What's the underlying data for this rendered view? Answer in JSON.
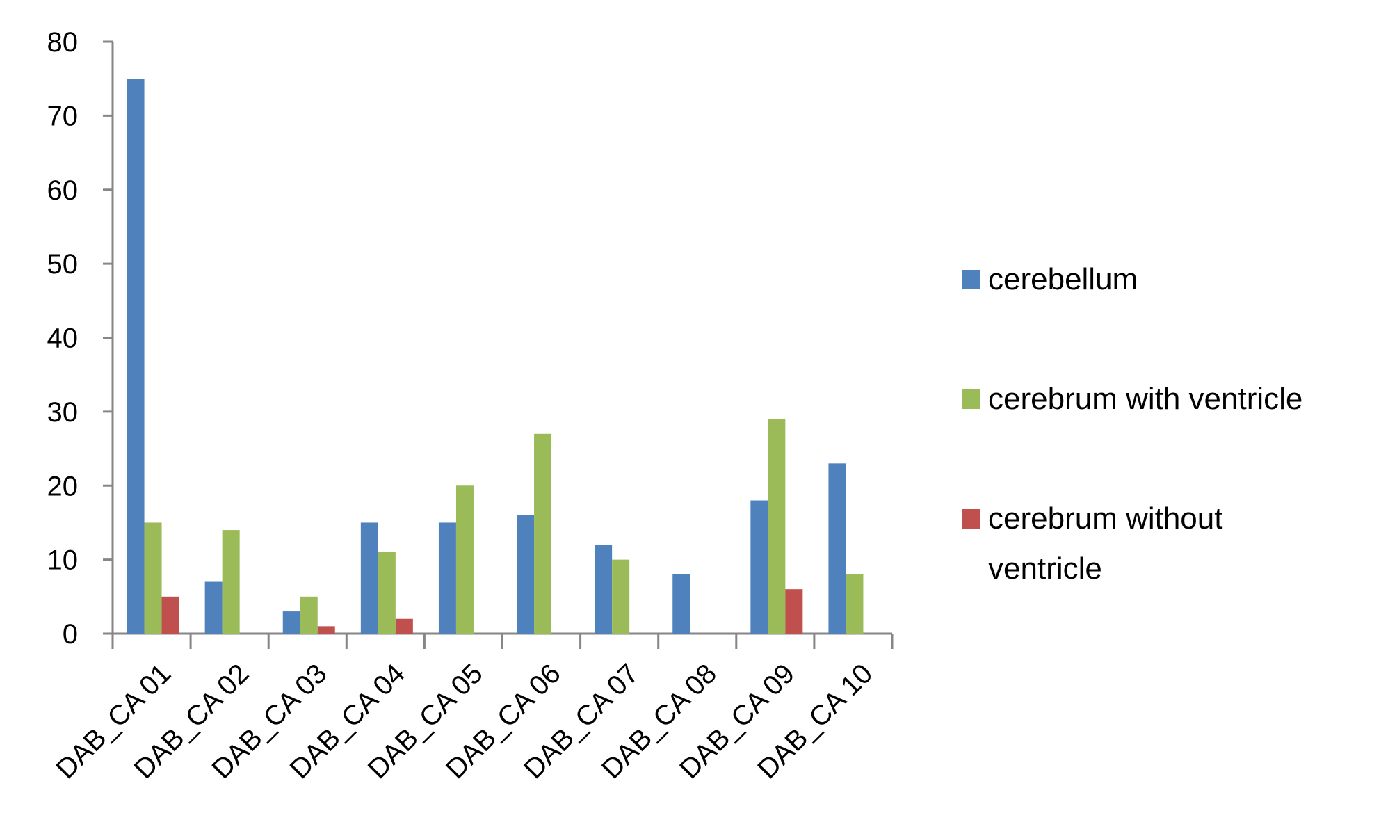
{
  "chart_data": {
    "type": "bar",
    "title": "",
    "xlabel": "",
    "ylabel": "",
    "ylim": [
      0,
      80
    ],
    "yticks": [
      0,
      10,
      20,
      30,
      40,
      50,
      60,
      70,
      80
    ],
    "grid": false,
    "legend_position": "right",
    "categories": [
      "DAB_CA 01",
      "DAB_CA 02",
      "DAB_CA 03",
      "DAB_CA 04",
      "DAB_CA 05",
      "DAB_CA 06",
      "DAB_CA 07",
      "DAB_CA 08",
      "DAB_CA 09",
      "DAB_CA 10"
    ],
    "series": [
      {
        "name": "cerebellum",
        "color": "#4F81BD",
        "values": [
          75,
          7,
          3,
          15,
          15,
          16,
          12,
          8,
          18,
          23
        ]
      },
      {
        "name": "cerebrum with ventricle",
        "color": "#9BBB59",
        "values": [
          15,
          14,
          5,
          11,
          20,
          27,
          10,
          0,
          29,
          8
        ]
      },
      {
        "name": "cerebrum without ventricle",
        "name_lines": [
          "cerebrum without",
          "ventricle"
        ],
        "color": "#C0504D",
        "values": [
          5,
          0,
          1,
          2,
          0,
          0,
          0,
          0,
          6,
          0
        ]
      }
    ]
  }
}
